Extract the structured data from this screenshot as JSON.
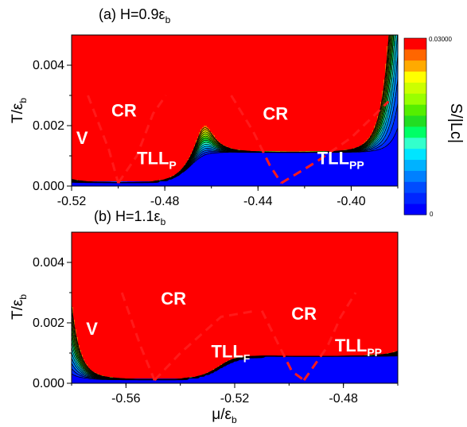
{
  "chart_data": [
    {
      "type": "heatmap",
      "panel": "a",
      "title_prefix": "(a) H=0.9",
      "title_symbol": "ε",
      "title_sub": "b",
      "xlim": [
        -0.52,
        -0.38
      ],
      "ylim": [
        0.0,
        0.005
      ],
      "x_ticks": [
        -0.52,
        -0.48,
        -0.44,
        -0.4
      ],
      "x_tick_labels": [
        "-0.52",
        "-0.48",
        "-0.44",
        "-0.40"
      ],
      "y_ticks": [
        0.0,
        0.002,
        0.004
      ],
      "y_tick_labels": [
        "0.000",
        "0.002",
        "0.004"
      ],
      "ylabel": {
        "main": "T/ε",
        "sub": "b"
      },
      "critical_points_mu": [
        -0.5,
        -0.43
      ],
      "dip_floor_T": [
        0.0001,
        0.001
      ],
      "hot_spots": [
        {
          "mu": -0.497,
          "T": 0.005,
          "value": 0.0215
        },
        {
          "mu": -0.425,
          "T": 0.005,
          "value": 0.0135
        }
      ],
      "crossover_lines": [
        [
          [
            -0.513,
            0.003
          ],
          [
            -0.504,
            0.0012
          ],
          [
            -0.5,
            0.0001
          ]
        ],
        [
          [
            -0.5,
            0.0001
          ],
          [
            -0.492,
            0.001
          ],
          [
            -0.485,
            0.0024
          ],
          [
            -0.4795,
            0.003
          ]
        ],
        [
          [
            -0.4515,
            0.003
          ],
          [
            -0.442,
            0.0018
          ],
          [
            -0.435,
            0.0007
          ],
          [
            -0.43,
            0.0001
          ]
        ],
        [
          [
            -0.43,
            0.0001
          ],
          [
            -0.415,
            0.0008
          ],
          [
            -0.4,
            0.0016
          ],
          [
            -0.384,
            0.0028
          ]
        ]
      ],
      "region_labels": [
        {
          "text": "V",
          "sub": "",
          "mu": -0.5155,
          "T": 0.0014
        },
        {
          "text": "CR",
          "sub": "",
          "mu": -0.4975,
          "T": 0.0023
        },
        {
          "text": "CR",
          "sub": "",
          "mu": -0.4325,
          "T": 0.0022
        },
        {
          "text": "TLL",
          "sub": "P",
          "mu": -0.4835,
          "T": 0.00072
        },
        {
          "text": "TLL",
          "sub": "PP",
          "mu": -0.4045,
          "T": 0.00073
        }
      ]
    },
    {
      "type": "heatmap",
      "panel": "b",
      "title_prefix": "(b) H=1.1",
      "title_symbol": "ε",
      "title_sub": "b",
      "xlim": [
        -0.58,
        -0.46
      ],
      "ylim": [
        0.0,
        0.005
      ],
      "x_ticks": [
        -0.56,
        -0.52,
        -0.48
      ],
      "x_tick_labels": [
        "-0.56",
        "-0.52",
        "-0.48"
      ],
      "y_ticks": [
        0.0,
        0.002,
        0.004
      ],
      "y_tick_labels": [
        "0.000",
        "0.002",
        "0.004"
      ],
      "ylabel": {
        "main": "T/ε",
        "sub": "b"
      },
      "xlabel": {
        "main": "μ/ε",
        "sub": "b"
      },
      "critical_points_mu": [
        -0.549,
        -0.494
      ],
      "dip_floor_T": [
        0.0001,
        0.0008
      ],
      "hot_spots": [
        {
          "mu": -0.547,
          "T": 0.005,
          "value": 0.0145
        },
        {
          "mu": -0.491,
          "T": 0.005,
          "value": 0.0245
        }
      ],
      "crossover_lines": [
        [
          [
            -0.5615,
            0.003
          ],
          [
            -0.5545,
            0.0012
          ],
          [
            -0.5495,
            0.0001
          ]
        ],
        [
          [
            -0.5495,
            0.0001
          ],
          [
            -0.54,
            0.001
          ],
          [
            -0.525,
            0.0022
          ],
          [
            -0.512,
            0.0024
          ]
        ],
        [
          [
            -0.51,
            0.0024
          ],
          [
            -0.504,
            0.0013
          ],
          [
            -0.499,
            0.0004
          ],
          [
            -0.4945,
            0.0001
          ]
        ],
        [
          [
            -0.4945,
            0.0001
          ],
          [
            -0.486,
            0.0012
          ],
          [
            -0.481,
            0.0022
          ],
          [
            -0.4755,
            0.003
          ]
        ]
      ],
      "region_labels": [
        {
          "text": "V",
          "sub": "",
          "mu": -0.5725,
          "T": 0.0016
        },
        {
          "text": "CR",
          "sub": "",
          "mu": -0.5425,
          "T": 0.0026
        },
        {
          "text": "CR",
          "sub": "",
          "mu": -0.4945,
          "T": 0.0021
        },
        {
          "text": "TLL",
          "sub": "F",
          "mu": -0.5215,
          "T": 0.00085
        },
        {
          "text": "TLL",
          "sub": "PP",
          "mu": -0.4745,
          "T": 0.00105
        }
      ]
    }
  ],
  "colorbar": {
    "label": "S/|Lc|",
    "max_label": "0.03000",
    "min_label": "0",
    "levels": 15,
    "colors": [
      "#0000ff",
      "#0026ff",
      "#004cff",
      "#0080ff",
      "#00b2ff",
      "#00e5ff",
      "#33ffcc",
      "#00ff66",
      "#22dd22",
      "#55ee00",
      "#99ff00",
      "#ccff00",
      "#ffff00",
      "#ffaa00",
      "#ff6600",
      "#ff0000"
    ]
  },
  "style": {
    "crossover_color": "#ff1a1a",
    "contour_color": "#000000"
  }
}
